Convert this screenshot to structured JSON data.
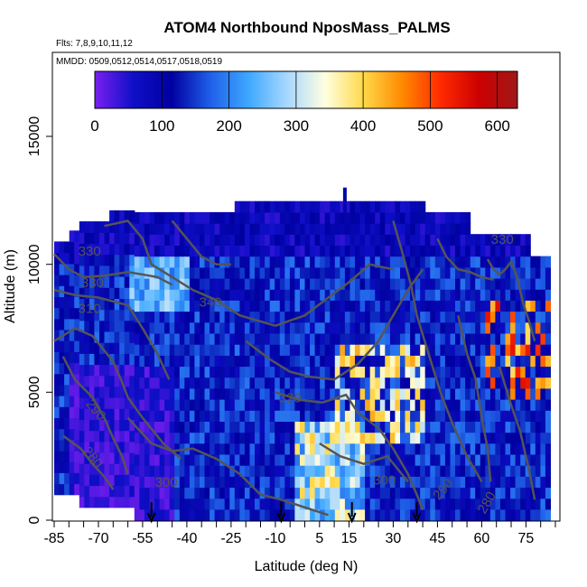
{
  "chart_data": {
    "type": "heatmap",
    "title": "ATOM4 Northbound NposMass_PALMS",
    "subtitle_flights": "Flts: 7,8,9,10,11,12",
    "subtitle_dates": "MMDD: 0509,0512,0514,0517,0518,0519",
    "xlabel": "Latitude (deg N)",
    "ylabel": "Altitude (m)",
    "xlim": [
      -85,
      85
    ],
    "ylim": [
      0,
      17500
    ],
    "x_ticks": [
      -85,
      -70,
      -55,
      -40,
      -25,
      -10,
      5,
      15,
      30,
      45,
      60,
      75
    ],
    "y_ticks": [
      0,
      5000,
      10000,
      15000
    ],
    "colorbar": {
      "ticks": [
        0,
        100,
        200,
        300,
        400,
        500,
        600
      ],
      "range": [
        0,
        630
      ],
      "colors": [
        "#7a1ff0",
        "#0f0fc8",
        "#0000a0",
        "#1f5fe8",
        "#3ea8ff",
        "#a8d8ff",
        "#ffffe0",
        "#ffd84a",
        "#ff8a00",
        "#ff2a00",
        "#cc0000",
        "#a01818"
      ]
    },
    "contours": [
      {
        "level": 330,
        "label": "330"
      },
      {
        "level": 330,
        "label": "330"
      },
      {
        "level": 310,
        "label": "310"
      },
      {
        "level": 340,
        "label": "340"
      },
      {
        "level": 320,
        "label": "320"
      },
      {
        "level": 290,
        "label": "290"
      },
      {
        "level": 280,
        "label": "280"
      },
      {
        "level": 300,
        "label": "300"
      },
      {
        "level": 300,
        "label": "300"
      },
      {
        "level": 290,
        "label": "290"
      },
      {
        "level": 280,
        "label": "280"
      },
      {
        "level": 330,
        "label": "330"
      }
    ],
    "arrows_lat": [
      -52,
      -8,
      16,
      38
    ]
  }
}
